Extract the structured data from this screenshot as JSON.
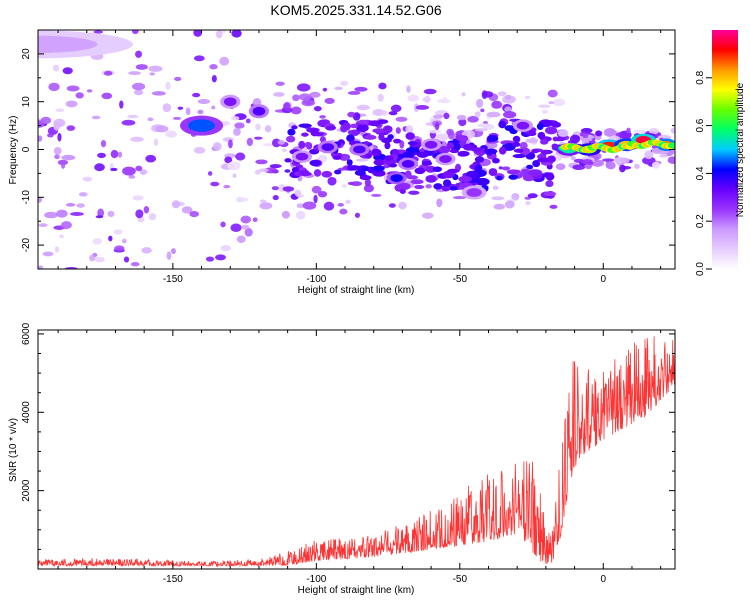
{
  "chart_data": [
    {
      "type": "heatmap",
      "title": "KOM5.2025.331.14.52.G06",
      "xlabel": "Height of straight line (km)",
      "ylabel": "Frequency (Hz)",
      "xlim": [
        -197,
        25
      ],
      "ylim": [
        -25,
        25
      ],
      "xticks": [
        -150,
        -100,
        -50,
        0
      ],
      "yticks": [
        -20,
        -10,
        0,
        10,
        20
      ],
      "colorbar": {
        "label": "Normalized spectral amplitude",
        "range": [
          0,
          1
        ],
        "ticks": [
          "0.0",
          "0.2",
          "0.4",
          "0.6",
          "0.8"
        ],
        "tick_values": [
          0,
          0.2,
          0.4,
          0.6,
          0.8
        ],
        "colormap": [
          "#ffffff",
          "#e6ccff",
          "#cc99ff",
          "#9933ff",
          "#6600ff",
          "#0000ff",
          "#00ccff",
          "#00ff66",
          "#66ff00",
          "#ffff00",
          "#ff9900",
          "#ff0000",
          "#ff0099"
        ]
      },
      "features": [
        {
          "x": -197,
          "y": 22,
          "w": 40,
          "h": 3,
          "a": 0.15
        },
        {
          "x": -140,
          "y": 5,
          "w": 8,
          "h": 2,
          "a": 0.45
        },
        {
          "x": -130,
          "y": 10,
          "w": 3,
          "h": 1.2,
          "a": 0.3
        },
        {
          "x": -120,
          "y": 8,
          "w": 3,
          "h": 1.2,
          "a": 0.35
        },
        {
          "x": -105,
          "y": -1.5,
          "w": 3,
          "h": 1,
          "a": 0.3
        },
        {
          "x": -96,
          "y": 0.5,
          "w": 3,
          "h": 1,
          "a": 0.35
        },
        {
          "x": -85,
          "y": 0,
          "w": 3,
          "h": 1,
          "a": 0.35
        },
        {
          "x": -72,
          "y": -6,
          "w": 3,
          "h": 1,
          "a": 0.4
        },
        {
          "x": -68,
          "y": -3,
          "w": 3,
          "h": 1,
          "a": 0.35
        },
        {
          "x": -60,
          "y": 1,
          "w": 3,
          "h": 1,
          "a": 0.3
        },
        {
          "x": -55,
          "y": -2,
          "w": 3,
          "h": 1,
          "a": 0.3
        },
        {
          "x": -45,
          "y": -9,
          "w": 4,
          "h": 1.2,
          "a": 0.25
        },
        {
          "x": -28,
          "y": 5,
          "w": 3,
          "h": 1,
          "a": 0.3
        },
        {
          "x": -12,
          "y": 0,
          "w": 4,
          "h": 1,
          "a": 0.55
        },
        {
          "x": -5,
          "y": 0,
          "w": 4,
          "h": 1,
          "a": 0.7
        },
        {
          "x": 2,
          "y": 0.8,
          "w": 4,
          "h": 1,
          "a": 0.9
        },
        {
          "x": 8,
          "y": 1,
          "w": 4,
          "h": 1,
          "a": 0.8
        },
        {
          "x": 14,
          "y": 2,
          "w": 4,
          "h": 1,
          "a": 0.95
        },
        {
          "x": 22,
          "y": 1,
          "w": 3,
          "h": 1,
          "a": 0.85
        }
      ]
    },
    {
      "type": "line",
      "xlabel": "Height of straight line (km)",
      "ylabel": "SNR (10 * v/v)",
      "xlim": [
        -197,
        25
      ],
      "ylim": [
        0,
        6100
      ],
      "xticks": [
        -150,
        -100,
        -50,
        0
      ],
      "yticks": [
        2000,
        4000,
        6000
      ],
      "series": [
        {
          "name": "SNR",
          "color": "#ff3333",
          "envelope_x": [
            -197,
            -180,
            -160,
            -140,
            -120,
            -110,
            -100,
            -90,
            -80,
            -70,
            -60,
            -50,
            -40,
            -30,
            -22,
            -20,
            -18,
            -15,
            -12,
            -10,
            -5,
            0,
            5,
            10,
            15,
            20,
            25
          ],
          "envelope_low": [
            80,
            80,
            80,
            80,
            80,
            100,
            200,
            250,
            300,
            400,
            500,
            600,
            700,
            900,
            200,
            100,
            100,
            800,
            2000,
            2600,
            3000,
            3300,
            3500,
            3700,
            3900,
            4300,
            4700
          ],
          "envelope_high": [
            250,
            280,
            250,
            200,
            250,
            450,
            750,
            800,
            900,
            1200,
            1500,
            2000,
            2500,
            3200,
            2600,
            1200,
            900,
            3000,
            4500,
            5600,
            5200,
            5400,
            5500,
            5800,
            5900,
            6000,
            6100
          ]
        }
      ]
    }
  ]
}
